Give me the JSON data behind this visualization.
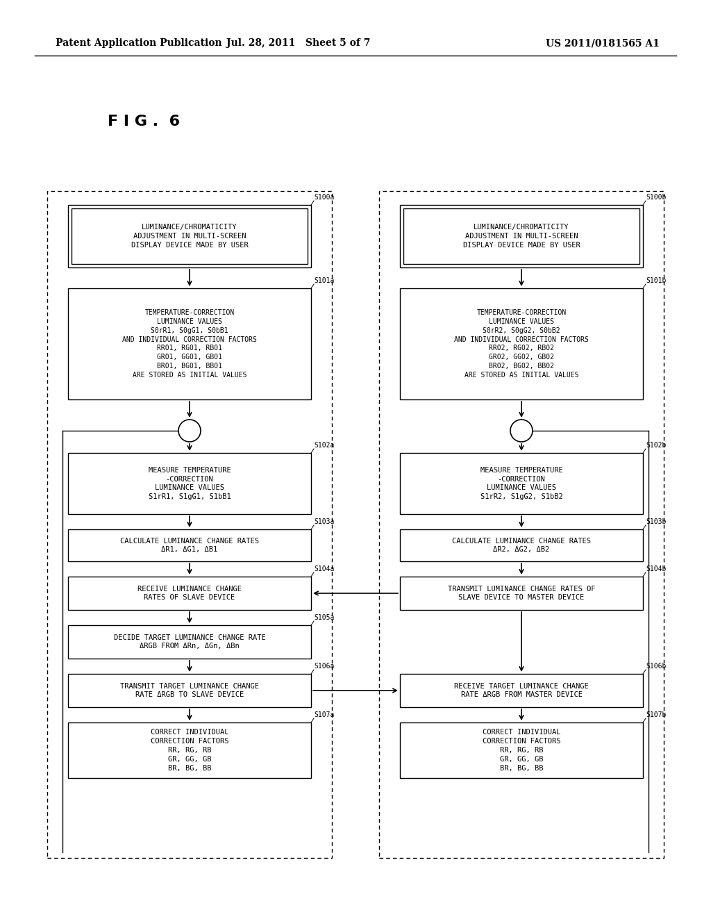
{
  "header_left": "Patent Application Publication",
  "header_mid": "Jul. 28, 2011   Sheet 5 of 7",
  "header_right": "US 2011/0181565 A1",
  "fig_label": "F I G .  6",
  "bg_color": "#ffffff",
  "left_steps": [
    {
      "id": "S100a",
      "label": "LUMINANCE/CHROMATICITY\nADJUSTMENT IN MULTI-SCREEN\nDISPLAY DEVICE MADE BY USER",
      "double_border": true
    },
    {
      "id": "S101a",
      "label": "TEMPERATURE-CORRECTION\nLUMINANCE VALUES\nS0rR1, S0gG1, S0bB1\nAND INDIVIDUAL CORRECTION FACTORS\nRR01, RG01, RB01\nGR01, GG01, GB01\nBR01, BG01, BB01\nARE STORED AS INITIAL VALUES",
      "double_border": false
    },
    {
      "id": "S102a",
      "label": "MEASURE TEMPERATURE\n-CORRECTION\nLUMINANCE VALUES\nS1rR1, S1gG1, S1bB1",
      "double_border": false
    },
    {
      "id": "S103a",
      "label": "CALCULATE LUMINANCE CHANGE RATES\nΔR1, ΔG1, ΔB1",
      "double_border": false
    },
    {
      "id": "S104a",
      "label": "RECEIVE LUMINANCE CHANGE\nRATES OF SLAVE DEVICE",
      "double_border": false
    },
    {
      "id": "S105a",
      "label": "DECIDE TARGET LUMINANCE CHANGE RATE\nΔRGB FROM ΔRn, ΔGn, ΔBn",
      "double_border": false
    },
    {
      "id": "S106a",
      "label": "TRANSMIT TARGET LUMINANCE CHANGE\nRATE ΔRGB TO SLAVE DEVICE",
      "double_border": false
    },
    {
      "id": "S107a",
      "label": "CORRECT INDIVIDUAL\nCORRECTION FACTORS\nRR, RG, RB\nGR, GG, GB\nBR, BG, BB",
      "double_border": false
    }
  ],
  "right_steps": [
    {
      "id": "S100b",
      "label": "LUMINANCE/CHROMATICITY\nADJUSTMENT IN MULTI-SCREEN\nDISPLAY DEVICE MADE BY USER",
      "double_border": true
    },
    {
      "id": "S101b",
      "label": "TEMPERATURE-CORRECTION\nLUMINANCE VALUES\nS0rR2, S0gG2, S0bB2\nAND INDIVIDUAL CORRECTION FACTORS\nRR02, RG02, RB02\nGR02, GG02, GB02\nBR02, BG02, BB02\nARE STORED AS INITIAL VALUES",
      "double_border": false
    },
    {
      "id": "S102b",
      "label": "MEASURE TEMPERATURE\n-CORRECTION\nLUMINANCE VALUES\nS1rR2, S1gG2, S1bB2",
      "double_border": false
    },
    {
      "id": "S103b",
      "label": "CALCULATE LUMINANCE CHANGE RATES\nΔR2, ΔG2, ΔB2",
      "double_border": false
    },
    {
      "id": "S104b",
      "label": "TRANSMIT LUMINANCE CHANGE RATES OF\nSLAVE DEVICE TO MASTER DEVICE",
      "double_border": false
    },
    {
      "id": "S106b",
      "label": "RECEIVE TARGET LUMINANCE CHANGE\nRATE ΔRGB FROM MASTER DEVICE",
      "double_border": false
    },
    {
      "id": "S107b",
      "label": "CORRECT INDIVIDUAL\nCORRECTION FACTORS\nRR, RG, RB\nGR, GG, GB\nBR, BG, BB",
      "double_border": false
    }
  ]
}
